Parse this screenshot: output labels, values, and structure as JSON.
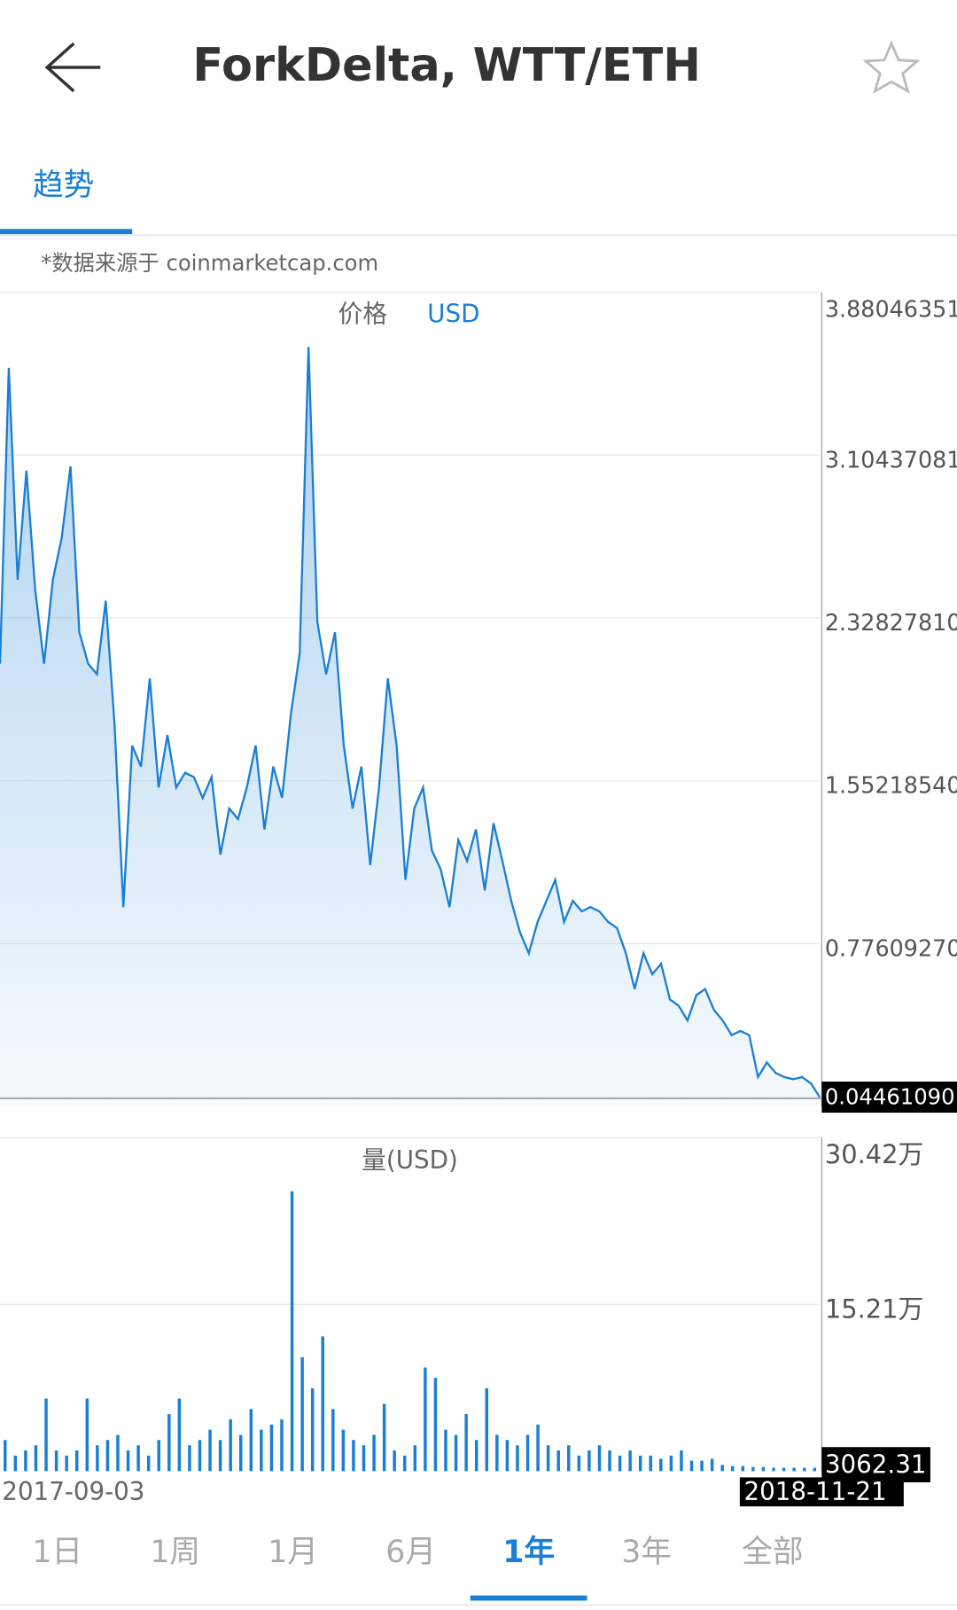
{
  "header": {
    "title": "ForkDelta, WTT/ETH"
  },
  "tabs": [
    "趋势"
  ],
  "source_note": "*数据来源于 coinmarketcap.com",
  "chart_data": [
    {
      "type": "line",
      "title": "价格",
      "unit": "USD",
      "color": "#1a7fd4",
      "ylim": [
        0,
        3.88046351
      ],
      "yticks": [
        {
          "value": 0.7760927,
          "label": "0.77609270"
        },
        {
          "value": 1.5521854,
          "label": "1.55218540"
        },
        {
          "value": 2.3282781,
          "label": "2.32827810"
        },
        3.10437081,
        3.88046351
      ],
      "grid": true,
      "current": {
        "value": 0.0446109,
        "label": "0.04461090"
      },
      "values": [
        2.11,
        3.52,
        2.51,
        3.03,
        2.46,
        2.11,
        2.51,
        2.71,
        3.05,
        2.26,
        2.11,
        2.06,
        2.41,
        1.82,
        0.95,
        1.72,
        1.62,
        2.04,
        1.52,
        1.77,
        1.52,
        1.59,
        1.57,
        1.47,
        1.57,
        1.2,
        1.42,
        1.37,
        1.52,
        1.72,
        1.32,
        1.62,
        1.47,
        1.87,
        2.16,
        3.62,
        2.31,
        2.06,
        2.26,
        1.72,
        1.42,
        1.62,
        1.15,
        1.52,
        2.04,
        1.72,
        1.08,
        1.42,
        1.52,
        1.22,
        1.13,
        0.95,
        1.27,
        1.17,
        1.32,
        1.03,
        1.35,
        1.17,
        0.98,
        0.83,
        0.73,
        0.88,
        0.98,
        1.08,
        0.88,
        0.98,
        0.93,
        0.95,
        0.93,
        0.88,
        0.85,
        0.73,
        0.56,
        0.73,
        0.63,
        0.68,
        0.51,
        0.48,
        0.41,
        0.53,
        0.56,
        0.46,
        0.41,
        0.34,
        0.36,
        0.34,
        0.14,
        0.21,
        0.16,
        0.14,
        0.13,
        0.14,
        0.11,
        0.0446109
      ]
    },
    {
      "type": "bar",
      "title": "量(USD)",
      "color": "#1a7fd4",
      "ylim": [
        0,
        304200
      ],
      "yticks": [
        {
          "value": 152100,
          "label": "15.21万"
        },
        {
          "value": 304200,
          "label": "30.42万"
        }
      ],
      "grid": true,
      "values": [
        28400,
        14200,
        18900,
        23600,
        66200,
        18900,
        14200,
        18900,
        66200,
        23600,
        28400,
        33100,
        18900,
        23600,
        14200,
        28400,
        52000,
        66200,
        23600,
        28400,
        37800,
        28400,
        47300,
        33100,
        56700,
        37800,
        42500,
        47300,
        255200,
        104000,
        75600,
        122900,
        56700,
        37800,
        28400,
        23600,
        33100,
        61400,
        18900,
        14200,
        23600,
        94500,
        85100,
        37800,
        33100,
        52000,
        28400,
        75600,
        33100,
        28400,
        23600,
        33100,
        42500,
        23600,
        18900,
        23600,
        14200,
        18900,
        23600,
        18900,
        14200,
        18900,
        14200,
        14200,
        11300,
        14200,
        18900,
        9500,
        9500,
        11300,
        5700,
        4700,
        4700,
        3800,
        3800,
        3062.31,
        3062.31,
        3062.31,
        3062.31,
        3062.31
      ]
    }
  ],
  "x_labels": {
    "start": "2017-09-03",
    "end": "2018-11-21"
  },
  "ranges": [
    "1日",
    "1周",
    "1月",
    "6月",
    "1年",
    "3年",
    "全部"
  ],
  "selected_range": 4
}
